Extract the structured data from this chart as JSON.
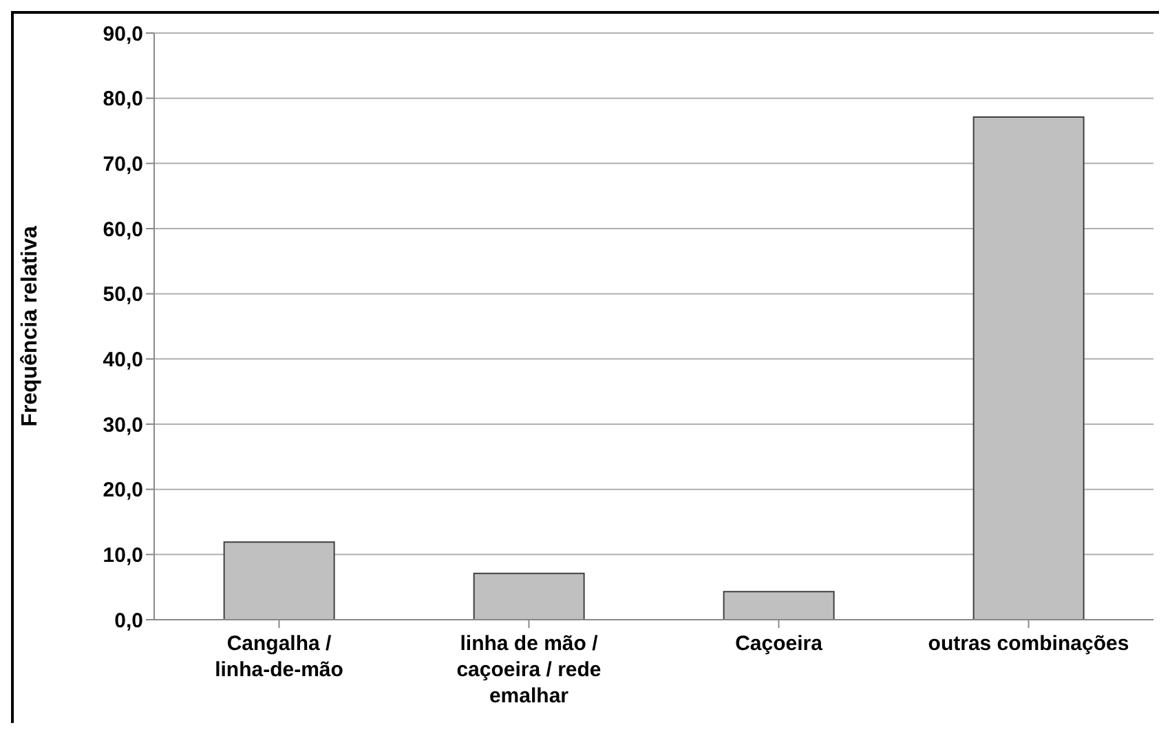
{
  "chart_data": {
    "type": "bar",
    "ylabel": "Frequência relativa",
    "categories": [
      "Cangalha / linha-de-mão",
      "linha de mão / caçoeira / rede emalhar",
      "Caçoeira",
      "outras combinações"
    ],
    "values": [
      11.9,
      7.1,
      4.3,
      77.1
    ],
    "color": "#c0c0c0",
    "ylim": [
      0,
      90
    ],
    "yticks": [
      {
        "value": 0,
        "label": "0,0"
      },
      {
        "value": 10,
        "label": "10,0"
      },
      {
        "value": 20,
        "label": "20,0"
      },
      {
        "value": 30,
        "label": "30,0"
      },
      {
        "value": 40,
        "label": "40,0"
      },
      {
        "value": 50,
        "label": "50,0"
      },
      {
        "value": 60,
        "label": "60,0"
      },
      {
        "value": 70,
        "label": "70,0"
      },
      {
        "value": 80,
        "label": "80,0"
      },
      {
        "value": 90,
        "label": "90,0"
      }
    ],
    "grid": "y",
    "legend": false
  }
}
